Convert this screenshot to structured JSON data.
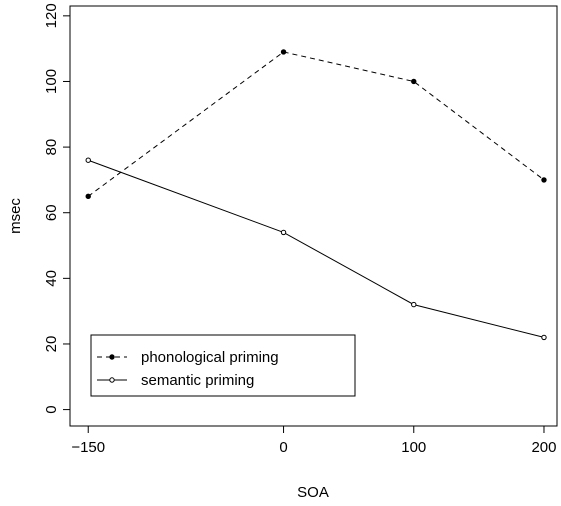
{
  "chart_data": {
    "type": "line",
    "xlabel": "SOA",
    "ylabel": "msec",
    "x": [
      -150,
      0,
      100,
      200
    ],
    "x_tick_labels": [
      "−150",
      "0",
      "100",
      "200"
    ],
    "xlim": [
      -164,
      210
    ],
    "ylim": [
      -5,
      123
    ],
    "y_ticks": [
      0,
      20,
      40,
      60,
      80,
      100,
      120
    ],
    "y_tick_labels": [
      "0",
      "20",
      "40",
      "60",
      "80",
      "100",
      "120"
    ],
    "grid": false,
    "legend_position": "bottom-left",
    "series": [
      {
        "name": "phonological priming",
        "values": [
          65,
          109,
          100,
          70
        ],
        "line_style": "dashed",
        "marker": "filled-circle",
        "color": "#000000"
      },
      {
        "name": "semantic priming",
        "values": [
          76,
          54,
          32,
          22
        ],
        "line_style": "solid",
        "marker": "open-circle",
        "color": "#000000"
      }
    ]
  }
}
